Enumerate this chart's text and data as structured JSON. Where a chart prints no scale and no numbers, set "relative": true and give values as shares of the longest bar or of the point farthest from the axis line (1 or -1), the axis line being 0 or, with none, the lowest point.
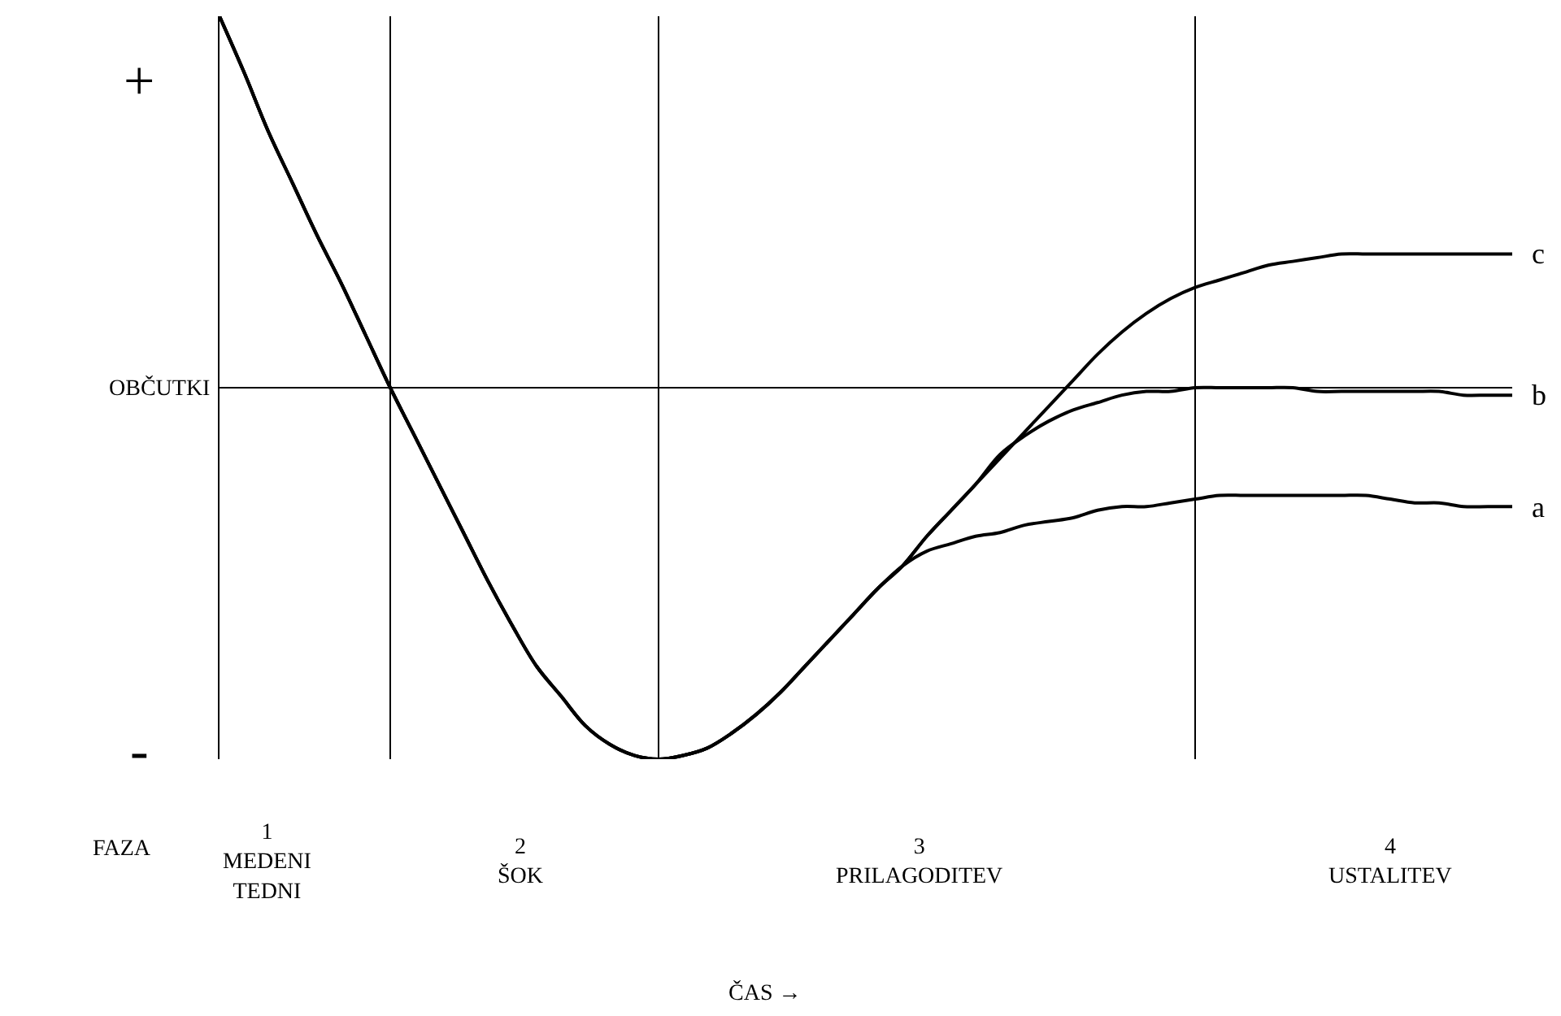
{
  "chart_data": {
    "type": "line",
    "relative": true,
    "legend": false,
    "grid": "x",
    "marker": "none",
    "line_style": "solid",
    "ylabel": "OBČUTKI",
    "categories": [
      null,
      null,
      null,
      null,
      null,
      null,
      null,
      null,
      null,
      null,
      null,
      null,
      null,
      null,
      null,
      null,
      null,
      null,
      null,
      null,
      null,
      null,
      null,
      null,
      null,
      null,
      null,
      null,
      null,
      null,
      null,
      null,
      null,
      null,
      null,
      null,
      null,
      null,
      null,
      null,
      null,
      null,
      null,
      null,
      null,
      null,
      null,
      null,
      null,
      null,
      null,
      null,
      null,
      null
    ],
    "series": [
      {
        "name": "a",
        "color": "#000000",
        "values": [
          1.0,
          0.85,
          0.69,
          0.55,
          0.41,
          0.28,
          0.14,
          0,
          -0.13,
          -0.26,
          -0.39,
          -0.52,
          -0.64,
          -0.75,
          -0.83,
          -0.91,
          -0.96,
          -0.99,
          -1.0,
          -0.99,
          -0.97,
          -0.93,
          -0.88,
          -0.82,
          -0.75,
          -0.68,
          -0.61,
          -0.54,
          -0.48,
          -0.44,
          -0.42,
          -0.4,
          -0.39,
          -0.37,
          -0.36,
          -0.35,
          -0.33,
          -0.32,
          -0.32,
          -0.31,
          -0.3,
          -0.29,
          -0.29,
          -0.29,
          -0.29,
          -0.29,
          -0.29,
          -0.29,
          -0.3,
          -0.31,
          -0.31,
          -0.32,
          -0.32,
          -0.32
        ]
      },
      {
        "name": "b",
        "color": "#000000",
        "values": [
          1.0,
          0.85,
          0.69,
          0.55,
          0.41,
          0.28,
          0.14,
          0,
          -0.13,
          -0.26,
          -0.39,
          -0.52,
          -0.64,
          -0.75,
          -0.83,
          -0.91,
          -0.96,
          -0.99,
          -1.0,
          -0.99,
          -0.97,
          -0.93,
          -0.88,
          -0.82,
          -0.75,
          -0.68,
          -0.61,
          -0.54,
          -0.48,
          -0.4,
          -0.33,
          -0.26,
          -0.18,
          -0.13,
          -0.09,
          -0.06,
          -0.04,
          -0.02,
          -0.01,
          -0.01,
          0,
          0,
          0,
          0,
          0,
          -0.01,
          -0.01,
          -0.01,
          -0.01,
          -0.01,
          -0.01,
          -0.02,
          -0.02,
          -0.02
        ]
      },
      {
        "name": "c",
        "color": "#000000",
        "values": [
          1.0,
          0.85,
          0.69,
          0.55,
          0.41,
          0.28,
          0.14,
          0,
          -0.13,
          -0.26,
          -0.39,
          -0.52,
          -0.64,
          -0.75,
          -0.83,
          -0.91,
          -0.96,
          -0.99,
          -1.0,
          -0.99,
          -0.97,
          -0.93,
          -0.88,
          -0.82,
          -0.75,
          -0.68,
          -0.61,
          -0.54,
          -0.48,
          -0.4,
          -0.33,
          -0.26,
          -0.19,
          -0.12,
          -0.05,
          0.02,
          0.09,
          0.15,
          0.2,
          0.24,
          0.27,
          0.29,
          0.31,
          0.33,
          0.34,
          0.35,
          0.36,
          0.36,
          0.36,
          0.36,
          0.36,
          0.36,
          0.36,
          0.36
        ]
      }
    ],
    "annotations": [
      "+",
      "-",
      "FAZA",
      "1\nMEDENI\nTEDNI",
      "2\nŠOK",
      "3\nPRILAGODITEV",
      "4\nUSTALITEV",
      "ČAS →"
    ]
  }
}
